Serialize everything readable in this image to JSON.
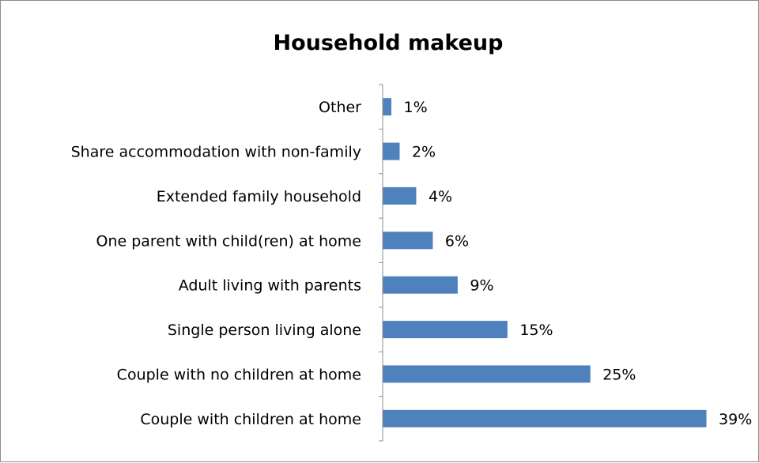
{
  "chart_data": {
    "type": "bar",
    "orientation": "horizontal",
    "title": "Household makeup",
    "categories": [
      "Other",
      "Share accommodation with non-family",
      "Extended family household",
      "One parent with child(ren) at home",
      "Adult living with parents",
      "Single person living alone",
      "Couple with no children at home",
      "Couple with children at home"
    ],
    "values": [
      1,
      2,
      4,
      6,
      9,
      15,
      25,
      39
    ],
    "value_labels": [
      "1%",
      "2%",
      "4%",
      "6%",
      "9%",
      "15%",
      "25%",
      "39%"
    ],
    "unit": "%",
    "xlim": [
      0,
      41
    ],
    "grid": false,
    "legend": "none",
    "bar_color": "#4f81bd"
  }
}
